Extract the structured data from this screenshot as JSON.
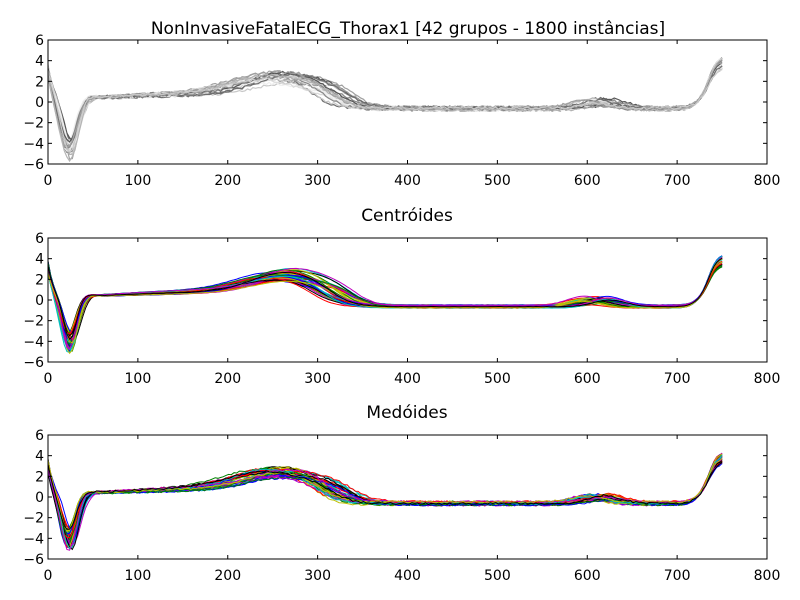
{
  "chart_data": [
    {
      "type": "line",
      "title": "NonInvasiveFatalECG_Thorax1 [42 grupos - 1800 instâncias]",
      "xlim": [
        0,
        800
      ],
      "ylim": [
        -6,
        6
      ],
      "xticks": [
        0,
        100,
        200,
        300,
        400,
        500,
        600,
        700,
        800
      ],
      "yticks": [
        6,
        4,
        2,
        0,
        -2,
        -4,
        -6
      ],
      "palette": "grayscale",
      "grid": false,
      "series_count_drawn": 24
    },
    {
      "type": "line",
      "title": "Centróides",
      "xlim": [
        0,
        800
      ],
      "ylim": [
        -6,
        6
      ],
      "xticks": [
        0,
        100,
        200,
        300,
        400,
        500,
        600,
        700,
        800
      ],
      "yticks": [
        6,
        4,
        2,
        0,
        -2,
        -4,
        -6
      ],
      "palette": "color",
      "grid": false,
      "series_count_drawn": 42
    },
    {
      "type": "line",
      "title": "Medóides",
      "xlim": [
        0,
        800
      ],
      "ylim": [
        -6,
        6
      ],
      "xticks": [
        0,
        100,
        200,
        300,
        400,
        500,
        600,
        700,
        800
      ],
      "yticks": [
        6,
        4,
        2,
        0,
        -2,
        -4,
        -6
      ],
      "palette": "color",
      "grid": false,
      "series_count_drawn": 42
    }
  ],
  "colors": {
    "cycle": [
      "#0000ff",
      "#008000",
      "#ff0000",
      "#00bfbf",
      "#bf00bf",
      "#bfbf00",
      "#000000"
    ]
  }
}
